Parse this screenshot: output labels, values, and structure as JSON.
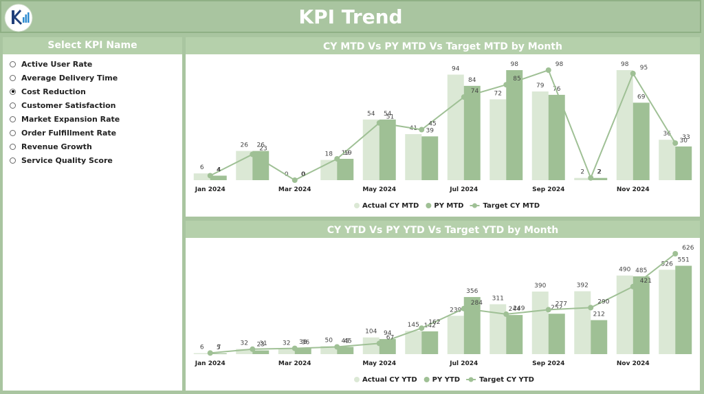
{
  "header": {
    "title": "KPI Trend"
  },
  "slicer": {
    "title": "Select KPI Name",
    "selected_index": 2,
    "options": [
      "Active User Rate",
      "Average Delivery Time",
      "Cost Reduction",
      "Customer Satisfaction",
      "Market Expansion Rate",
      "Order Fulfillment Rate",
      "Revenue Growth",
      "Service Quality Score"
    ]
  },
  "chart_data": [
    {
      "type": "combo",
      "title": "CY MTD Vs PY MTD Vs Target MTD by Month",
      "categories": [
        "Jan 2024",
        null,
        "Mar 2024",
        null,
        "May 2024",
        null,
        "Jul 2024",
        null,
        "Sep 2024",
        null,
        "Nov 2024",
        null
      ],
      "series": [
        {
          "name": "Actual CY MTD",
          "type": "bar",
          "color": "#dbe8d5",
          "values": [
            6,
            26,
            0,
            18,
            54,
            41,
            94,
            72,
            79,
            2,
            98,
            36
          ]
        },
        {
          "name": "PY MTD",
          "type": "bar",
          "color": "#9fc095",
          "values": [
            4,
            26,
            0,
            19,
            54,
            39,
            84,
            98,
            76,
            2,
            69,
            30
          ]
        },
        {
          "name": "Target CY MTD",
          "type": "line",
          "color": "#9fc095",
          "values": [
            4,
            23,
            0,
            19,
            51,
            45,
            74,
            85,
            98,
            2,
            95,
            33
          ]
        }
      ]
    },
    {
      "type": "combo",
      "title": "CY YTD Vs PY YTD Vs Target YTD by Month",
      "categories": [
        "Jan 2024",
        null,
        "Mar 2024",
        null,
        "May 2024",
        null,
        "Jul 2024",
        null,
        "Sep 2024",
        null,
        "Nov 2024",
        null
      ],
      "series": [
        {
          "name": "Actual CY YTD",
          "type": "bar",
          "color": "#dbe8d5",
          "values": [
            6,
            32,
            32,
            50,
            104,
            145,
            239,
            311,
            390,
            392,
            490,
            526
          ]
        },
        {
          "name": "PY YTD",
          "type": "bar",
          "color": "#9fc095",
          "values": [
            5,
            23,
            38,
            45,
            94,
            142,
            356,
            244,
            252,
            212,
            485,
            551
          ]
        },
        {
          "name": "Target CY YTD",
          "type": "line",
          "color": "#9fc095",
          "values": [
            7,
            31,
            36,
            45,
            67,
            162,
            284,
            249,
            277,
            290,
            421,
            626
          ]
        }
      ]
    }
  ]
}
